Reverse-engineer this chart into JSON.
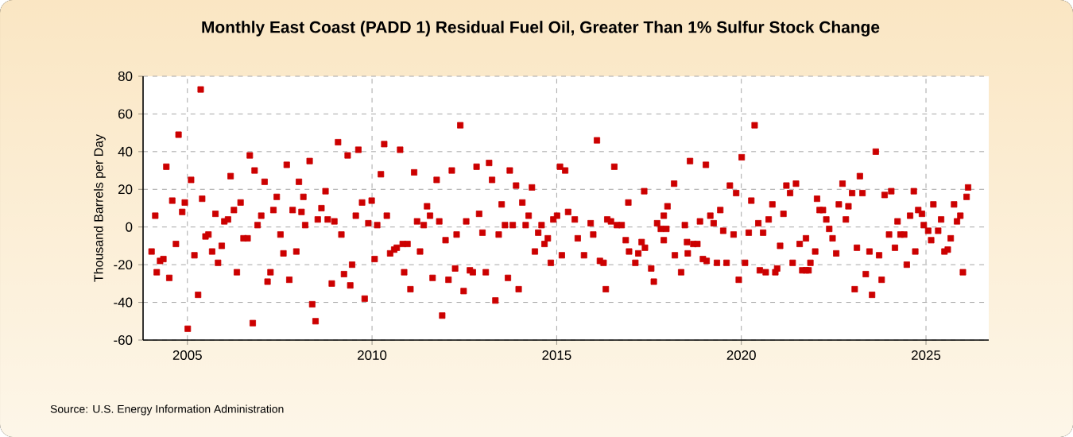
{
  "chart_data": {
    "type": "scatter",
    "title": "Monthly East Coast (PADD 1) Residual Fuel Oil, Greater Than 1% Sulfur Stock Change",
    "ylabel": "Thousand Barrels per Day",
    "annotations": [
      "Source: U.S. Energy Information Administration"
    ],
    "color": "#cc0000",
    "marker": "square",
    "grid": true,
    "xlim": [
      2003.8,
      2026.7
    ],
    "ylim": [
      -60,
      80
    ],
    "xticks": [
      2005,
      2010,
      2015,
      2020,
      2025
    ],
    "yticks": [
      -60,
      -40,
      -20,
      0,
      20,
      40,
      60,
      80
    ],
    "x": [
      2005.36,
      2004.76,
      2004.43,
      2005.1,
      2006.69,
      2007.69,
      2006.17,
      2006.82,
      2007.09,
      2008.02,
      2004.59,
      2004.93,
      2005.4,
      2007.42,
      2004.13,
      2004.86,
      2005.76,
      2006.26,
      2006.44,
      2007.0,
      2007.33,
      2007.85,
      2008.09,
      2006.0,
      2006.1,
      2006.9,
      2005.49,
      2005.57,
      2006.52,
      2006.63,
      2007.52,
      2004.03,
      2004.69,
      2005.19,
      2005.67,
      2005.93,
      2007.6,
      2007.95,
      2004.26,
      2004.35,
      2005.83,
      2004.17,
      2004.51,
      2006.34,
      2007.25,
      2007.17,
      2007.76,
      2005.29,
      2005.01,
      2006.77,
      2009.08,
      2008.31,
      2009.34,
      2009.63,
      2010.33,
      2010.76,
      2010.24,
      2011.14,
      2011.75,
      2012.16,
      2012.39,
      2008.14,
      2008.74,
      2009.73,
      2009.99,
      2011.49,
      2008.63,
      2008.19,
      2008.53,
      2008.8,
      2008.98,
      2009.56,
      2009.9,
      2010.14,
      2010.4,
      2011.22,
      2011.4,
      2011.57,
      2011.82,
      2009.17,
      2011.99,
      2012.29,
      2010.07,
      2010.49,
      2010.6,
      2010.67,
      2010.83,
      2010.96,
      2011.3,
      2009.46,
      2009.24,
      2008.91,
      2009.41,
      2010.87,
      2011.04,
      2011.64,
      2012.07,
      2012.25,
      2009.8,
      2008.38,
      2008.47,
      2011.9,
      2012.83,
      2013.17,
      2013.25,
      2013.73,
      2013.9,
      2014.33,
      2016.09,
      2015.09,
      2015.23,
      2016.56,
      2013.51,
      2014.07,
      2012.9,
      2012.55,
      2014.24,
      2013.6,
      2013.81,
      2014.16,
      2014.59,
      2015.01,
      2014.91,
      2015.31,
      2015.49,
      2015.92,
      2016.37,
      2016.47,
      2016.63,
      2012.99,
      2013.43,
      2014.5,
      2014.76,
      2014.67,
      2015.57,
      2015.99,
      2014.41,
      2014.84,
      2015.14,
      2015.74,
      2016.17,
      2016.27,
      2012.65,
      2012.73,
      2013.08,
      2013.68,
      2013.97,
      2012.48,
      2013.34,
      2016.33,
      2020.36,
      2018.61,
      2019.04,
      2020.01,
      2018.18,
      2019.69,
      2019.86,
      2017.37,
      2016.94,
      2020.27,
      2020.84,
      2018.0,
      2019.43,
      2019.16,
      2017.9,
      2016.76,
      2017.72,
      2017.82,
      2017.97,
      2018.47,
      2018.88,
      2019.25,
      2019.51,
      2019.79,
      2020.2,
      2020.46,
      2020.59,
      2020.74,
      2016.87,
      2017.3,
      2017.9,
      2018.53,
      2018.7,
      2018.81,
      2016.96,
      2017.39,
      2017.21,
      2018.2,
      2018.55,
      2018.96,
      2019.06,
      2017.13,
      2019.34,
      2019.6,
      2020.1,
      2017.56,
      2018.37,
      2020.5,
      2020.66,
      2020.92,
      2017.63,
      2019.93,
      2023.64,
      2023.21,
      2022.74,
      2021.22,
      2021.48,
      2021.32,
      2023.0,
      2023.28,
      2023.88,
      2024.06,
      2024.67,
      2022.05,
      2022.64,
      2022.9,
      2022.12,
      2022.21,
      2025.2,
      2021.14,
      2022.3,
      2022.83,
      2024.79,
      2024.89,
      2024.57,
      2024.23,
      2024.94,
      2025.06,
      2022.38,
      2024.0,
      2024.31,
      2024.41,
      2025.14,
      2021.05,
      2021.75,
      2021.58,
      2022.47,
      2022.0,
      2022.57,
      2023.13,
      2023.47,
      2023.73,
      2024.16,
      2024.71,
      2021.39,
      2021.87,
      2020.97,
      2021.65,
      2021.75,
      2021.82,
      2024.48,
      2023.37,
      2023.8,
      2023.07,
      2023.54,
      2025.41,
      2025.33,
      2025.5,
      2025.59,
      2025.67,
      2025.76,
      2025.84,
      2025.93,
      2026.0,
      2026.1,
      2026.14
    ],
    "values": [
      73,
      49,
      32,
      25,
      38,
      33,
      27,
      30,
      24,
      24,
      14,
      13,
      15,
      16,
      6,
      8,
      7,
      9,
      13,
      6,
      9,
      9,
      8,
      3,
      4,
      1,
      -5,
      -4,
      -6,
      -6,
      -4,
      -13,
      -9,
      -15,
      -13,
      -10,
      -14,
      -13,
      -18,
      -17,
      -19,
      -24,
      -27,
      -24,
      -24,
      -29,
      -28,
      -36,
      -54,
      -51,
      45,
      35,
      38,
      41,
      44,
      41,
      28,
      29,
      25,
      30,
      54,
      16,
      19,
      13,
      14,
      11,
      10,
      1,
      4,
      4,
      3,
      6,
      2,
      1,
      6,
      3,
      1,
      6,
      3,
      -4,
      -7,
      -4,
      -17,
      -14,
      -12,
      -11,
      -9,
      -9,
      -13,
      -20,
      -25,
      -30,
      -31,
      -24,
      -33,
      -27,
      -28,
      -22,
      -38,
      -41,
      -50,
      -47,
      32,
      34,
      25,
      30,
      22,
      21,
      46,
      32,
      30,
      32,
      12,
      13,
      7,
      3,
      6,
      1,
      1,
      1,
      1,
      6,
      4,
      8,
      4,
      2,
      4,
      3,
      1,
      -3,
      -4,
      -3,
      -6,
      -9,
      -6,
      -4,
      -13,
      -19,
      -15,
      -15,
      -18,
      -19,
      -23,
      -24,
      -24,
      -27,
      -33,
      -34,
      -39,
      -33,
      54,
      35,
      33,
      37,
      23,
      22,
      18,
      19,
      13,
      14,
      12,
      11,
      9,
      6,
      6,
      1,
      2,
      -1,
      -1,
      1,
      3,
      2,
      -2,
      -4,
      -3,
      2,
      -3,
      4,
      -7,
      -8,
      -7,
      -8,
      -9,
      -9,
      -13,
      -11,
      -14,
      -15,
      -14,
      -17,
      -18,
      -19,
      -19,
      -19,
      -19,
      -22,
      -24,
      -23,
      -24,
      -24,
      -29,
      -28,
      40,
      27,
      23,
      22,
      23,
      18,
      18,
      18,
      17,
      19,
      19,
      15,
      12,
      11,
      9,
      9,
      12,
      7,
      4,
      4,
      9,
      7,
      6,
      3,
      1,
      -2,
      -1,
      -4,
      -4,
      -4,
      -7,
      -10,
      -6,
      -9,
      -6,
      -13,
      -14,
      -11,
      -13,
      -15,
      -11,
      -13,
      -19,
      -19,
      -22,
      -23,
      -23,
      -23,
      -20,
      -25,
      -28,
      -33,
      -36,
      4,
      -2,
      -13,
      -12,
      -6,
      12,
      3,
      6,
      -24,
      16,
      21
    ]
  }
}
